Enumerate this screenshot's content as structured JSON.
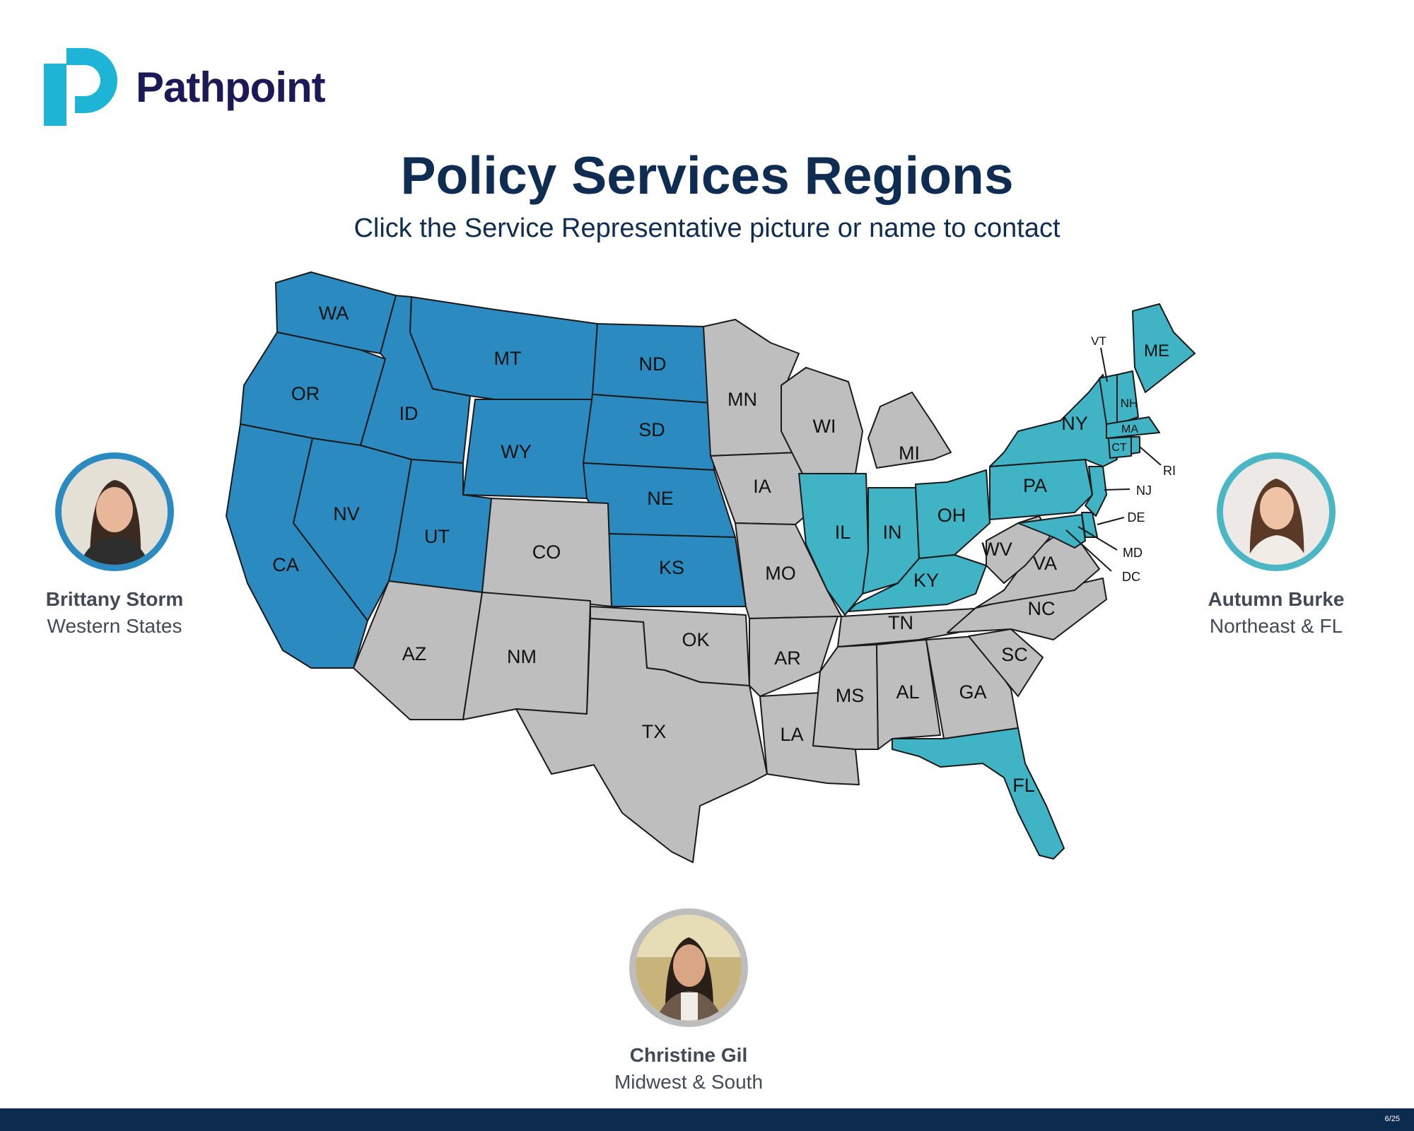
{
  "brand": {
    "name": "Pathpoint"
  },
  "header": {
    "title": "Policy Services Regions",
    "subtitle": "Click the Service Representative picture or name to contact"
  },
  "colors": {
    "west": "#2b8bc0",
    "northeast": "#40b4c5",
    "midwest_south": "#bebebe",
    "navy": "#0f2d52",
    "logo_teal": "#1db4d6"
  },
  "representatives": [
    {
      "id": "west",
      "name": "Brittany Storm",
      "region": "Western States",
      "ring_color": "#2b8bc0"
    },
    {
      "id": "northeast",
      "name": "Autumn Burke",
      "region": "Northeast & FL",
      "ring_color": "#4bb7c4"
    },
    {
      "id": "midwest_south",
      "name": "Christine Gil",
      "region": "Midwest & South",
      "ring_color": "#bdbdbd"
    }
  ],
  "map": {
    "state_labels": [
      {
        "id": "WA",
        "label": "WA",
        "region": "west"
      },
      {
        "id": "OR",
        "label": "OR",
        "region": "west"
      },
      {
        "id": "CA",
        "label": "CA",
        "region": "west"
      },
      {
        "id": "ID",
        "label": "ID",
        "region": "west"
      },
      {
        "id": "NV",
        "label": "NV",
        "region": "west"
      },
      {
        "id": "MT",
        "label": "MT",
        "region": "west"
      },
      {
        "id": "WY",
        "label": "WY",
        "region": "west"
      },
      {
        "id": "UT",
        "label": "UT",
        "region": "west"
      },
      {
        "id": "ND",
        "label": "ND",
        "region": "west"
      },
      {
        "id": "SD",
        "label": "SD",
        "region": "west"
      },
      {
        "id": "NE",
        "label": "NE",
        "region": "west"
      },
      {
        "id": "KS",
        "label": "KS",
        "region": "west"
      },
      {
        "id": "AZ",
        "label": "AZ",
        "region": "midwest_south"
      },
      {
        "id": "CO",
        "label": "CO",
        "region": "midwest_south"
      },
      {
        "id": "NM",
        "label": "NM",
        "region": "midwest_south"
      },
      {
        "id": "TX",
        "label": "TX",
        "region": "midwest_south"
      },
      {
        "id": "OK",
        "label": "OK",
        "region": "midwest_south"
      },
      {
        "id": "MN",
        "label": "MN",
        "region": "midwest_south"
      },
      {
        "id": "IA",
        "label": "IA",
        "region": "midwest_south"
      },
      {
        "id": "MO",
        "label": "MO",
        "region": "midwest_south"
      },
      {
        "id": "AR",
        "label": "AR",
        "region": "midwest_south"
      },
      {
        "id": "LA",
        "label": "LA",
        "region": "midwest_south"
      },
      {
        "id": "WI",
        "label": "WI",
        "region": "midwest_south"
      },
      {
        "id": "MI",
        "label": "MI",
        "region": "midwest_south"
      },
      {
        "id": "TN",
        "label": "TN",
        "region": "midwest_south"
      },
      {
        "id": "MS",
        "label": "MS",
        "region": "midwest_south"
      },
      {
        "id": "AL",
        "label": "AL",
        "region": "midwest_south"
      },
      {
        "id": "GA",
        "label": "GA",
        "region": "midwest_south"
      },
      {
        "id": "SC",
        "label": "SC",
        "region": "midwest_south"
      },
      {
        "id": "NC",
        "label": "NC",
        "region": "midwest_south"
      },
      {
        "id": "VA",
        "label": "VA",
        "region": "midwest_south"
      },
      {
        "id": "WV",
        "label": "WV",
        "region": "midwest_south"
      },
      {
        "id": "IL",
        "label": "IL",
        "region": "northeast"
      },
      {
        "id": "IN",
        "label": "IN",
        "region": "northeast"
      },
      {
        "id": "OH",
        "label": "OH",
        "region": "northeast"
      },
      {
        "id": "KY",
        "label": "KY",
        "region": "northeast"
      },
      {
        "id": "PA",
        "label": "PA",
        "region": "northeast"
      },
      {
        "id": "NY",
        "label": "NY",
        "region": "northeast"
      },
      {
        "id": "ME",
        "label": "ME",
        "region": "northeast"
      },
      {
        "id": "FL",
        "label": "FL",
        "region": "northeast"
      },
      {
        "id": "VT",
        "label": "VT",
        "region": "northeast"
      },
      {
        "id": "NH",
        "label": "NH",
        "region": "northeast"
      },
      {
        "id": "MA",
        "label": "MA",
        "region": "northeast"
      },
      {
        "id": "CT",
        "label": "CT",
        "region": "northeast"
      },
      {
        "id": "RI",
        "label": "RI",
        "region": "northeast"
      },
      {
        "id": "NJ",
        "label": "NJ",
        "region": "northeast"
      },
      {
        "id": "DE",
        "label": "DE",
        "region": "northeast"
      },
      {
        "id": "MD",
        "label": "MD",
        "region": "northeast"
      },
      {
        "id": "DC",
        "label": "DC",
        "region": "northeast"
      }
    ]
  },
  "footer": {
    "page": "6/25"
  }
}
